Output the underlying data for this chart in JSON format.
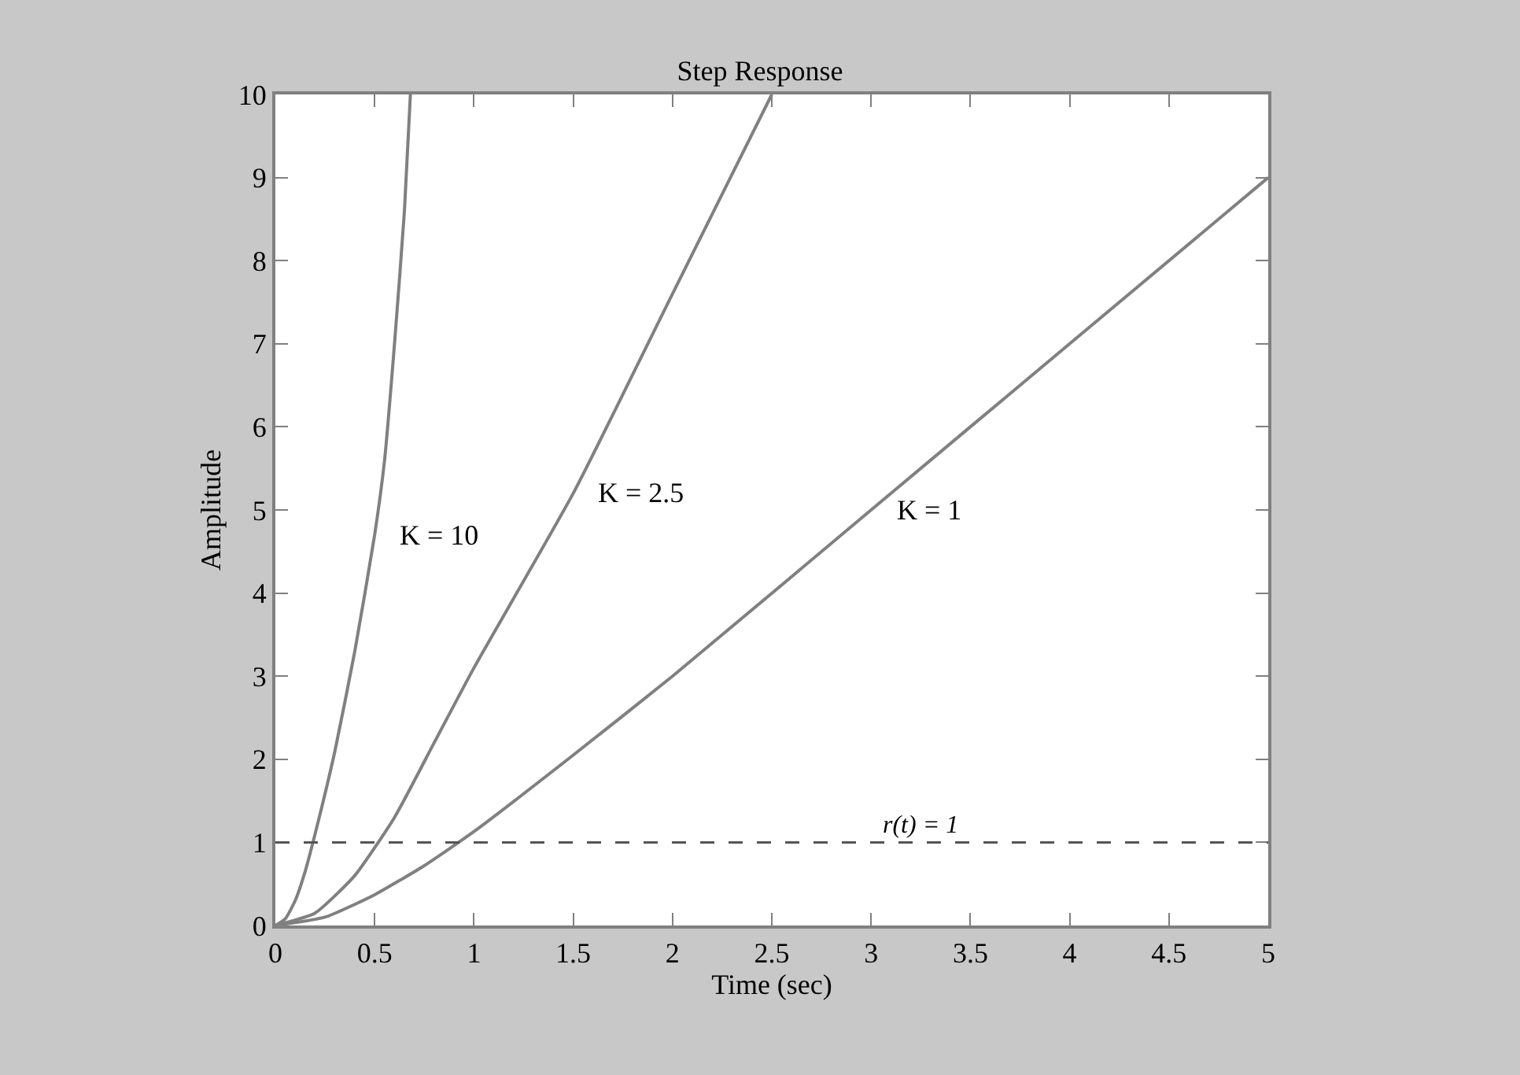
{
  "chart_data": {
    "type": "line",
    "title": "Step Response",
    "xlabel": "Time (sec)",
    "ylabel": "Amplitude",
    "xlim": [
      0,
      5
    ],
    "xticks": [
      0,
      0.5,
      1,
      1.5,
      2,
      2.5,
      3,
      3.5,
      4,
      4.5,
      5
    ],
    "ylim": [
      0,
      10
    ],
    "yticks": [
      0,
      1,
      2,
      3,
      4,
      5,
      6,
      7,
      8,
      9,
      10
    ],
    "marker": "none",
    "line_style": "solid",
    "series": [
      {
        "name": "K = 10",
        "color": "#808080",
        "x": [
          0,
          0.05,
          0.1,
          0.15,
          0.2,
          0.3,
          0.4,
          0.5,
          0.55,
          0.6,
          0.65,
          0.68
        ],
        "values": [
          0,
          0.08,
          0.3,
          0.65,
          1.1,
          2.1,
          3.3,
          4.7,
          5.6,
          7.0,
          8.6,
          10
        ]
      },
      {
        "name": "K = 2.5",
        "color": "#808080",
        "x": [
          0,
          0.2,
          0.4,
          0.6,
          0.8,
          1,
          1.5,
          2,
          2.5
        ],
        "values": [
          0,
          0.15,
          0.6,
          1.3,
          2.2,
          3.1,
          5.2,
          7.6,
          10
        ]
      },
      {
        "name": "K = 1",
        "color": "#808080",
        "x": [
          0,
          0.25,
          0.5,
          0.75,
          1,
          1.5,
          2,
          3,
          4,
          5
        ],
        "values": [
          0,
          0.1,
          0.37,
          0.72,
          1.13,
          2.05,
          3.0,
          5.0,
          7.0,
          9.0
        ]
      }
    ],
    "ref_lines": [
      {
        "axis": "y",
        "value": 1,
        "label": "r(t) = 1",
        "color": "#555555",
        "line_style": "dashed"
      }
    ]
  }
}
